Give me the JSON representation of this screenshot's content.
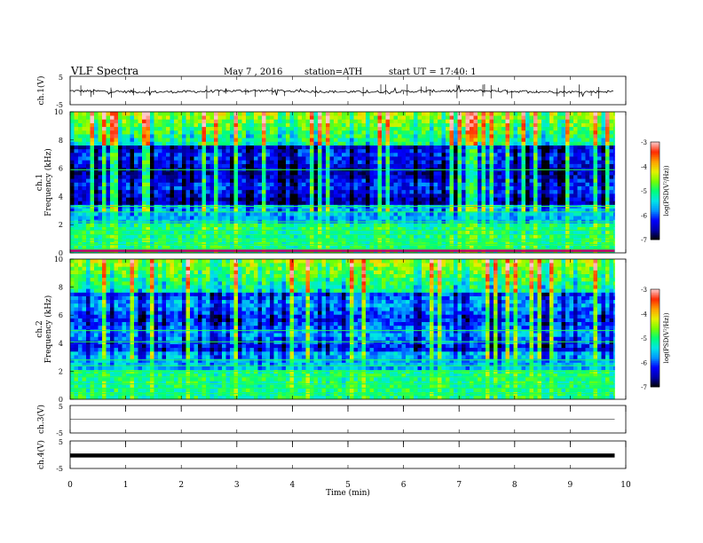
{
  "header": {
    "title": "VLF Spectra",
    "date": "May 7 , 2016",
    "station": "station=ATH",
    "start": "start UT = 17:40: 1"
  },
  "chart_data": [
    {
      "type": "line",
      "name": "ch1-waveform",
      "ylabel": "ch.1(V)",
      "yticks": [
        "5",
        "-5"
      ],
      "ylim": [
        -5,
        5
      ],
      "xlim": [
        0,
        9.8
      ],
      "description_level": -0.3
    },
    {
      "type": "heatmap",
      "name": "ch1-spectrogram",
      "ylabel": "ch.1 Frequency (kHz)",
      "ylabel_line1": "ch.1",
      "ylabel_line2": "Frequency (kHz)",
      "yticks": [
        "0",
        "2",
        "4",
        "6",
        "8",
        "10"
      ],
      "ylim": [
        0,
        10
      ],
      "xlim": [
        0,
        9.8
      ],
      "colorbar": {
        "label": "log(PSD(V²/Hz))",
        "ticks": [
          "-3",
          "-4",
          "-5",
          "-6",
          "-7"
        ],
        "range": [
          -7,
          -3
        ]
      }
    },
    {
      "type": "heatmap",
      "name": "ch2-spectrogram",
      "ylabel": "ch.2 Frequency (kHz)",
      "ylabel_line1": "ch.2",
      "ylabel_line2": "Frequency (kHz)",
      "yticks": [
        "0",
        "2",
        "4",
        "6",
        "8",
        "10"
      ],
      "ylim": [
        0,
        10
      ],
      "xlim": [
        0,
        9.8
      ],
      "colorbar": {
        "label": "log(PSD(V²/Hz))",
        "ticks": [
          "-3",
          "-4",
          "-5",
          "-6",
          "-7"
        ],
        "range": [
          -7,
          -3
        ]
      }
    },
    {
      "type": "line",
      "name": "ch3-waveform",
      "ylabel": "ch.3(V)",
      "yticks": [
        "5",
        "-5"
      ],
      "ylim": [
        -5,
        5
      ],
      "xlim": [
        0,
        9.8
      ],
      "level": 0
    },
    {
      "type": "line",
      "name": "ch4-waveform",
      "ylabel": "ch.4(V)",
      "yticks": [
        "5",
        "-5"
      ],
      "ylim": [
        -5,
        5
      ],
      "xlim": [
        0,
        9.8
      ],
      "level": -0.3
    }
  ],
  "xaxis": {
    "label": "Time (min)",
    "ticks": [
      "0",
      "1",
      "2",
      "3",
      "4",
      "5",
      "6",
      "7",
      "8",
      "9",
      "10"
    ],
    "range": [
      0,
      10
    ]
  },
  "colors": {
    "scale": [
      "#000000",
      "#0000ff",
      "#00c8ff",
      "#00ff80",
      "#c8ff00",
      "#ff8000",
      "#ff0000",
      "#ffffff"
    ]
  }
}
